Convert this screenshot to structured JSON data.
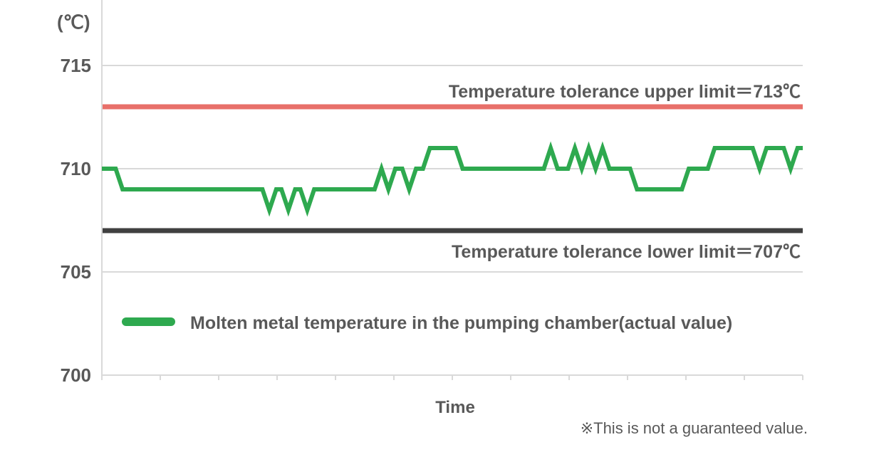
{
  "chart_data": {
    "type": "line",
    "ylabel": "(℃)",
    "xlabel": "Time",
    "ylim": [
      700,
      715
    ],
    "yticks": [
      "700",
      "705",
      "710",
      "715"
    ],
    "grid": true,
    "x_tick_count": 13,
    "series": [
      {
        "name": "Molten metal temperature in the pumping chamber(actual value)",
        "color": "#2ea94f",
        "points": [
          [
            0,
            710
          ],
          [
            0.8,
            710
          ],
          [
            1.2,
            709
          ],
          [
            9.3,
            709
          ],
          [
            9.7,
            708
          ],
          [
            10.1,
            709
          ],
          [
            10.4,
            709
          ],
          [
            10.8,
            708
          ],
          [
            11.2,
            709
          ],
          [
            11.5,
            709
          ],
          [
            11.9,
            708
          ],
          [
            12.3,
            709
          ],
          [
            15.8,
            709
          ],
          [
            16.2,
            710
          ],
          [
            16.6,
            709
          ],
          [
            17.0,
            710
          ],
          [
            17.4,
            710
          ],
          [
            17.8,
            709
          ],
          [
            18.2,
            710
          ],
          [
            18.6,
            710
          ],
          [
            19.0,
            711
          ],
          [
            20.5,
            711
          ],
          [
            20.9,
            710
          ],
          [
            25.6,
            710
          ],
          [
            26.0,
            711
          ],
          [
            26.4,
            710
          ],
          [
            27.0,
            710
          ],
          [
            27.4,
            711
          ],
          [
            27.8,
            710
          ],
          [
            28.2,
            711
          ],
          [
            28.6,
            710
          ],
          [
            29.0,
            711
          ],
          [
            29.4,
            710
          ],
          [
            30.6,
            710
          ],
          [
            31.0,
            709
          ],
          [
            33.6,
            709
          ],
          [
            34.0,
            710
          ],
          [
            35.1,
            710
          ],
          [
            35.5,
            711
          ],
          [
            37.7,
            711
          ],
          [
            38.1,
            710
          ],
          [
            38.5,
            711
          ],
          [
            39.5,
            711
          ],
          [
            39.9,
            710
          ],
          [
            40.3,
            711
          ],
          [
            40.6,
            711
          ]
        ]
      }
    ],
    "reference_lines": [
      {
        "label": "Temperature tolerance upper limit＝713℃",
        "value": 713,
        "color": "#e8706a"
      },
      {
        "label": "Temperature tolerance lower limit＝707℃",
        "value": 707,
        "color": "#404040"
      }
    ],
    "x_range": [
      0,
      40.6
    ],
    "note": "※This is not a guaranteed value."
  }
}
